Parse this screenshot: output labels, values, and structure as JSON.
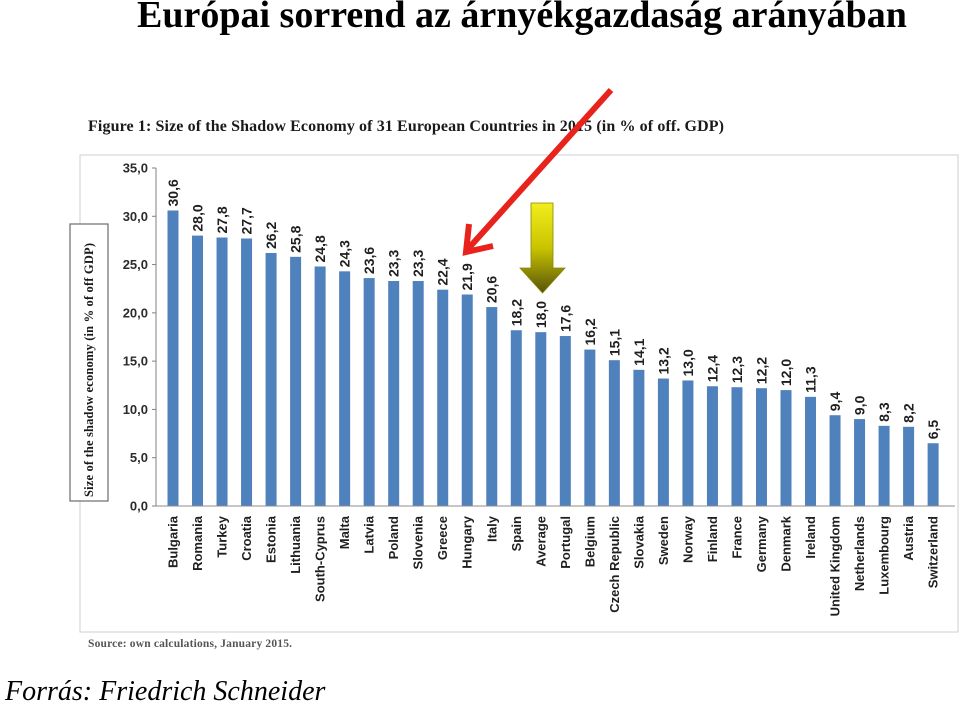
{
  "slide": {
    "title": "Európai sorrend az árnyékgazdaság arányában",
    "credit": "Forrás: Friedrich Schneider"
  },
  "figure": {
    "source_note": "Source: own calculations, January 2015."
  },
  "chart_data": {
    "type": "bar",
    "title": "Figure 1: Size of the Shadow Economy of 31 European Countries in 2015 (in % of off. GDP)",
    "xlabel": "",
    "ylabel": "Size of the shadow economy (in % of off GDP)",
    "ylim": [
      0,
      35
    ],
    "yticks": [
      0,
      5,
      10,
      15,
      20,
      25,
      30,
      35
    ],
    "ytick_labels": [
      "0,0",
      "5,0",
      "10,0",
      "15,0",
      "20,0",
      "25,0",
      "30,0",
      "35,0"
    ],
    "grid": false,
    "bar_color": "#4f81bd",
    "categories": [
      "Bulgaria",
      "Romania",
      "Turkey",
      "Croatia",
      "Estonia",
      "Lithuania",
      "South-Cyprus",
      "Malta",
      "Latvia",
      "Poland",
      "Slovenia",
      "Greece",
      "Hungary",
      "Italy",
      "Spain",
      "Average",
      "Portugal",
      "Belgium",
      "Czech Republic",
      "Slovakia",
      "Sweden",
      "Norway",
      "Finland",
      "France",
      "Germany",
      "Denmark",
      "Ireland",
      "United Kingdom",
      "Netherlands",
      "Luxembourg",
      "Austria",
      "Switzerland"
    ],
    "values": [
      30.6,
      28.0,
      27.8,
      27.7,
      26.2,
      25.8,
      24.8,
      24.3,
      23.6,
      23.3,
      23.3,
      22.4,
      21.9,
      20.6,
      18.2,
      18.0,
      17.6,
      16.2,
      15.1,
      14.1,
      13.2,
      13.0,
      12.4,
      12.3,
      12.2,
      12.0,
      11.3,
      9.4,
      9.0,
      8.3,
      8.2,
      6.5
    ],
    "value_labels": [
      "30,6",
      "28,0",
      "27,8",
      "27,7",
      "26,2",
      "25,8",
      "24,8",
      "24,3",
      "23,6",
      "23,3",
      "23,3",
      "22,4",
      "21,9",
      "20,6",
      "18,2",
      "18,0",
      "17,6",
      "16,2",
      "15,1",
      "14,1",
      "13,2",
      "13,0",
      "12,4",
      "12,3",
      "12,2",
      "12,0",
      "11,3",
      "9,4",
      "9,0",
      "8,3",
      "8,2",
      "6,5"
    ]
  },
  "annotations": {
    "red_arrow": {
      "icon": "arrow-down-left-icon",
      "color": "#e8231c"
    },
    "block_arrow": {
      "icon": "arrow-down-icon",
      "color_top": "#f2ee1c",
      "color_mid": "#c9c400",
      "color_bottom": "#56520a"
    }
  }
}
